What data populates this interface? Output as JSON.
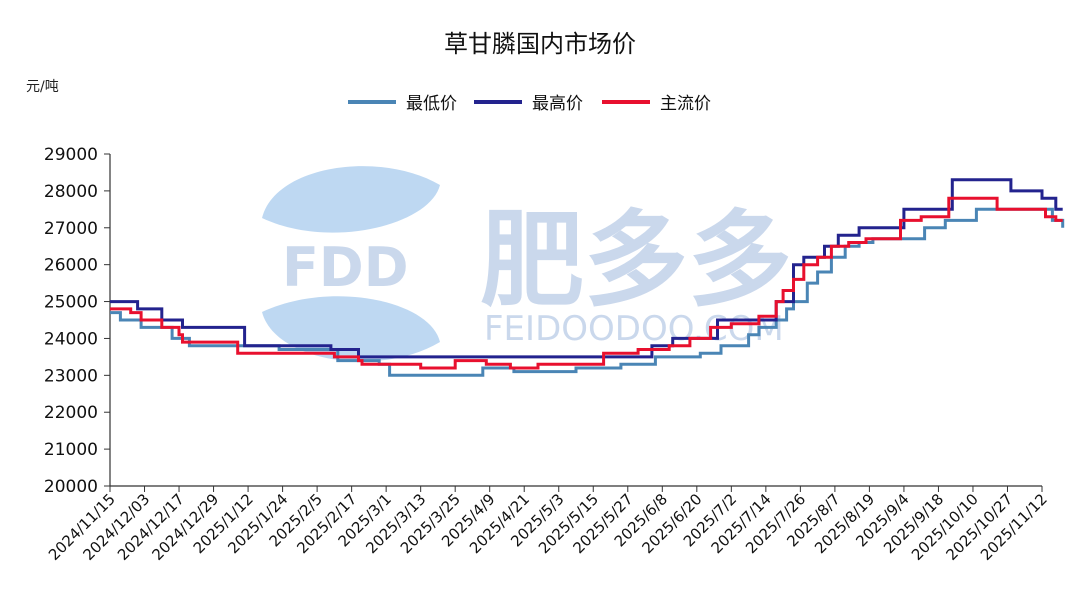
{
  "chart_data": {
    "type": "line",
    "title": "草甘膦国内市场价",
    "unit_label": "元/吨",
    "ylim": [
      20000,
      29000
    ],
    "yticks": [
      29000,
      28000,
      27000,
      26000,
      25000,
      24000,
      23000,
      22000,
      21000,
      20000
    ],
    "xtick_labels": [
      "2024/11/15",
      "2024/12/03",
      "2024/12/17",
      "2024/12/29",
      "2025/1/12",
      "2025/1/24",
      "2025/2/5",
      "2025/2/17",
      "2025/3/1",
      "2025/3/13",
      "2025/3/25",
      "2025/4/9",
      "2025/4/21",
      "2025/5/3",
      "2025/5/15",
      "2025/5/27",
      "2025/6/8",
      "2025/6/20",
      "2025/7/2",
      "2025/7/14",
      "2025/7/26",
      "2025/8/7",
      "2025/8/19",
      "2025/9/4",
      "2025/9/18",
      "2025/10/10",
      "2025/10/27",
      "2025/11/12"
    ],
    "grid": false,
    "legend": "top-center",
    "watermark": {
      "brand": "肥多多",
      "logo": "FDD",
      "site": "FEIDOODOO.COM"
    },
    "series": [
      {
        "name": "最低价",
        "color": "#4a85b5",
        "steps": [
          [
            0,
            24700
          ],
          [
            0.3,
            24500
          ],
          [
            0.9,
            24300
          ],
          [
            1.8,
            24000
          ],
          [
            2.3,
            23800
          ],
          [
            4.9,
            23700
          ],
          [
            6.6,
            23400
          ],
          [
            7.8,
            23300
          ],
          [
            8.1,
            23000
          ],
          [
            10.8,
            23200
          ],
          [
            11.7,
            23100
          ],
          [
            13.5,
            23200
          ],
          [
            14.8,
            23300
          ],
          [
            15.8,
            23500
          ],
          [
            17.1,
            23600
          ],
          [
            17.7,
            23800
          ],
          [
            18.5,
            24100
          ],
          [
            18.8,
            24300
          ],
          [
            19.3,
            24500
          ],
          [
            19.6,
            24800
          ],
          [
            19.8,
            25000
          ],
          [
            20.2,
            25500
          ],
          [
            20.5,
            25800
          ],
          [
            20.9,
            26200
          ],
          [
            21.3,
            26500
          ],
          [
            21.7,
            26600
          ],
          [
            22.1,
            26700
          ],
          [
            23.6,
            27000
          ],
          [
            24.2,
            27200
          ],
          [
            25.1,
            27500
          ],
          [
            27.1,
            27500
          ],
          [
            27.3,
            27200
          ],
          [
            27.6,
            27000
          ]
        ]
      },
      {
        "name": "最高价",
        "color": "#23238e",
        "steps": [
          [
            0,
            25000
          ],
          [
            0.8,
            24800
          ],
          [
            1.5,
            24500
          ],
          [
            2.1,
            24300
          ],
          [
            3.9,
            23800
          ],
          [
            6.4,
            23700
          ],
          [
            7.2,
            23500
          ],
          [
            8.0,
            23500
          ],
          [
            15.0,
            23500
          ],
          [
            15.7,
            23800
          ],
          [
            16.3,
            24000
          ],
          [
            17.6,
            24500
          ],
          [
            19.3,
            25000
          ],
          [
            19.8,
            26000
          ],
          [
            20.1,
            26200
          ],
          [
            20.7,
            26500
          ],
          [
            21.1,
            26800
          ],
          [
            21.7,
            27000
          ],
          [
            23.0,
            27500
          ],
          [
            24.4,
            28300
          ],
          [
            26.1,
            28000
          ],
          [
            27.0,
            27800
          ],
          [
            27.4,
            27500
          ],
          [
            27.6,
            27500
          ]
        ]
      },
      {
        "name": "主流价",
        "color": "#e8102e",
        "steps": [
          [
            0,
            24800
          ],
          [
            0.6,
            24700
          ],
          [
            0.9,
            24500
          ],
          [
            1.5,
            24300
          ],
          [
            2.0,
            24100
          ],
          [
            2.1,
            23900
          ],
          [
            3.7,
            23600
          ],
          [
            6.1,
            23600
          ],
          [
            6.5,
            23500
          ],
          [
            7.2,
            23400
          ],
          [
            7.3,
            23300
          ],
          [
            8.4,
            23300
          ],
          [
            9.0,
            23200
          ],
          [
            9.8,
            23200
          ],
          [
            10.0,
            23400
          ],
          [
            10.9,
            23300
          ],
          [
            11.6,
            23200
          ],
          [
            12.4,
            23300
          ],
          [
            14.3,
            23600
          ],
          [
            15.3,
            23700
          ],
          [
            15.7,
            23700
          ],
          [
            16.2,
            23800
          ],
          [
            16.8,
            24000
          ],
          [
            17.4,
            24300
          ],
          [
            18.0,
            24400
          ],
          [
            18.8,
            24600
          ],
          [
            19.3,
            25000
          ],
          [
            19.5,
            25300
          ],
          [
            19.8,
            25600
          ],
          [
            20.1,
            26000
          ],
          [
            20.5,
            26200
          ],
          [
            20.9,
            26500
          ],
          [
            21.4,
            26600
          ],
          [
            21.9,
            26700
          ],
          [
            22.6,
            26700
          ],
          [
            22.9,
            27200
          ],
          [
            23.5,
            27300
          ],
          [
            24.3,
            27800
          ],
          [
            25.7,
            27500
          ],
          [
            27.1,
            27300
          ],
          [
            27.4,
            27200
          ],
          [
            27.6,
            27200
          ]
        ]
      }
    ]
  }
}
